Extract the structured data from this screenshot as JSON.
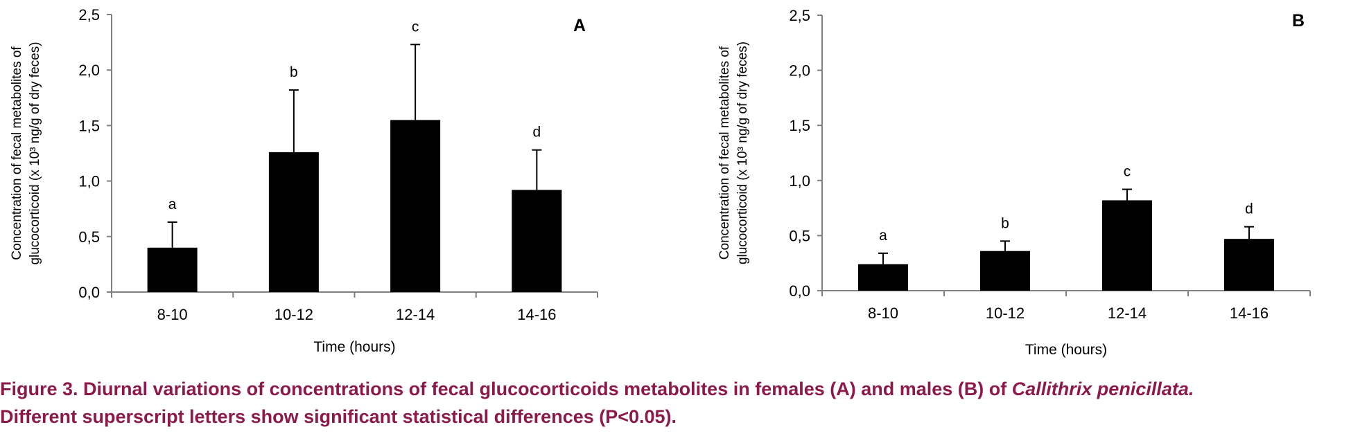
{
  "chart_data": [
    {
      "type": "bar",
      "panel_label": "A",
      "categories": [
        "8-10",
        "10-12",
        "12-14",
        "14-16"
      ],
      "values": [
        0.4,
        1.26,
        1.55,
        0.92
      ],
      "error_plus": [
        0.23,
        0.56,
        0.68,
        0.36
      ],
      "significance_letters": [
        "a",
        "b",
        "c",
        "d"
      ],
      "xlabel": "Time (hours)",
      "ylabel_line1": "Concentration of fecal metabolites of",
      "ylabel_line2": "glucocorticoid (x 10³ ng/g of dry feces)",
      "ylim": [
        0,
        2.5
      ],
      "yticks": [
        "0,0",
        "0,5",
        "1,0",
        "1,5",
        "2,0",
        "2,5"
      ],
      "bar_color": "#000000",
      "grid": false
    },
    {
      "type": "bar",
      "panel_label": "B",
      "categories": [
        "8-10",
        "10-12",
        "12-14",
        "14-16"
      ],
      "values": [
        0.24,
        0.36,
        0.82,
        0.47
      ],
      "error_plus": [
        0.1,
        0.09,
        0.1,
        0.11
      ],
      "significance_letters": [
        "a",
        "b",
        "c",
        "d"
      ],
      "xlabel": "Time (hours)",
      "ylabel_line1": "Concentration of fecal metabolites of",
      "ylabel_line2": "glucocorticoid (x 10³ ng/g of dry feces)",
      "ylim": [
        0,
        2.5
      ],
      "yticks": [
        "0,0",
        "0,5",
        "1,0",
        "1,5",
        "2,0",
        "2,5"
      ],
      "bar_color": "#000000",
      "grid": false
    }
  ],
  "caption": {
    "line1_main": "Figure 3. Diurnal variations of concentrations of fecal glucocorticoids metabolites in females (A) and males (B) of ",
    "line1_italic": "Callithrix penicillata.",
    "line2": "Different superscript letters show significant statistical differences (P<0.05).",
    "color": "#8b1a4b"
  }
}
